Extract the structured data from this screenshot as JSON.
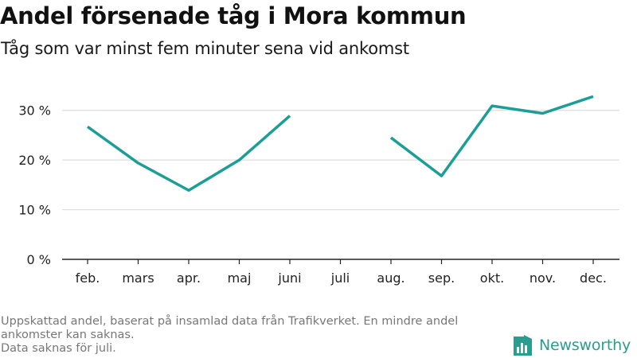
{
  "header": {
    "title": "Andel försenade tåg i Mora kommun",
    "subtitle": "Tåg som var minst fem minuter sena vid ankomst"
  },
  "footnote": {
    "line1": "Uppskattad andel, baserat på insamlad data från Trafikverket. En mindre andel",
    "line2": "ankomster kan saknas.",
    "line3": "Data saknas för juli."
  },
  "brand": {
    "name": "Newsworthy",
    "icon": "newsworthy-logo-icon",
    "color": "#2a9d8f"
  },
  "chart_data": {
    "type": "line",
    "title": "Andel försenade tåg i Mora kommun",
    "subtitle": "Tåg som var minst fem minuter sena vid ankomst",
    "categories": [
      "feb.",
      "mars",
      "apr.",
      "maj",
      "juni",
      "juli",
      "aug.",
      "sep.",
      "okt.",
      "nov.",
      "dec."
    ],
    "series": [
      {
        "values": [
          26.7,
          19.4,
          13.9,
          20.0,
          28.9,
          null,
          24.5,
          16.8,
          30.9,
          29.4,
          32.8
        ]
      }
    ],
    "y_ticks": [
      0,
      10,
      20,
      30
    ],
    "y_tick_labels": [
      "0 %",
      "10 %",
      "20 %",
      "30 %"
    ],
    "ylim": [
      0,
      33
    ],
    "grid": "horizontal",
    "colors": {
      "line": "#1a9e95",
      "grid": "#dddddd",
      "axis": "#222222"
    }
  }
}
